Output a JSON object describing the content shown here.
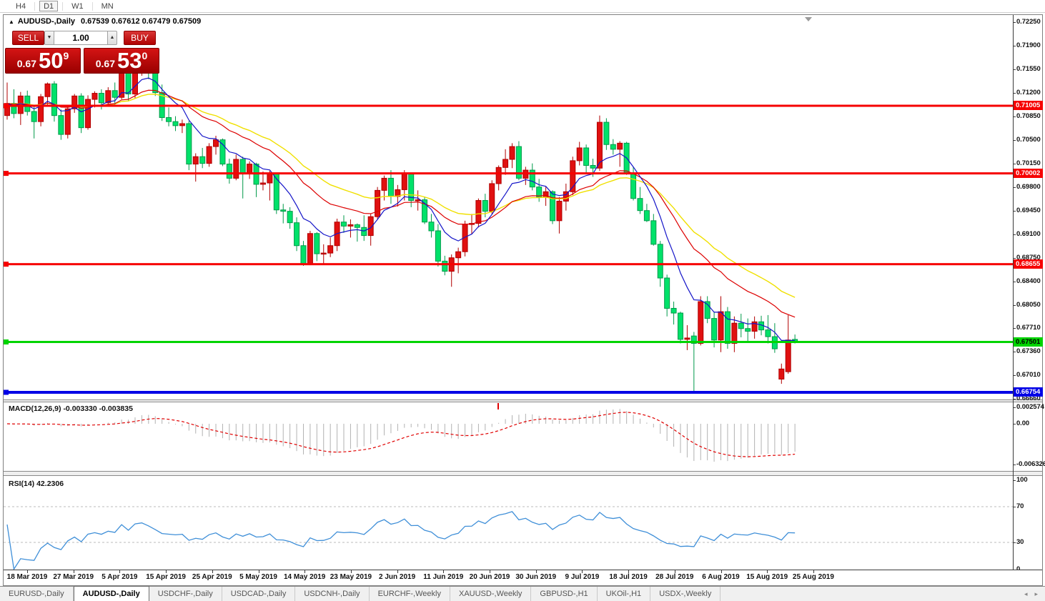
{
  "toolbar": {
    "timeframes": [
      {
        "label": "H4",
        "active": false
      },
      {
        "label": "D1",
        "active": true
      },
      {
        "label": "W1",
        "active": false
      },
      {
        "label": "MN",
        "active": false
      }
    ]
  },
  "header": {
    "symbol_title": "AUDUSD-,Daily",
    "ohlc_text": "0.67539 0.67612 0.67479 0.67509"
  },
  "trade_panel": {
    "sell_label": "SELL",
    "buy_label": "BUY",
    "volume": "1.00",
    "spin_down": "▼",
    "spin_up": "▲",
    "sell_price": {
      "prefix": "0.67",
      "big": "50",
      "sup": "9"
    },
    "buy_price": {
      "prefix": "0.67",
      "big": "53",
      "sup": "0"
    }
  },
  "price_axis": {
    "labels": [
      "0.72250",
      "0.71900",
      "0.71550",
      "0.71200",
      "0.70850",
      "0.70500",
      "0.70150",
      "0.69800",
      "0.69450",
      "0.69100",
      "0.68750",
      "0.68400",
      "0.68050",
      "0.67710",
      "0.67360",
      "0.67010",
      "0.66660"
    ]
  },
  "hlines": [
    {
      "price": 0.71005,
      "label": "0.71005",
      "line_color": "#f60000",
      "text_color": "#ffffff",
      "thickness": 3
    },
    {
      "price": 0.70002,
      "label": "0.70002",
      "line_color": "#f60000",
      "text_color": "#ffffff",
      "thickness": 3
    },
    {
      "price": 0.68655,
      "label": "0.68655",
      "line_color": "#f60000",
      "text_color": "#ffffff",
      "thickness": 3
    },
    {
      "price": 0.67501,
      "label": "0.67501",
      "line_color": "#00d400",
      "text_color": "#000000",
      "thickness": 3
    },
    {
      "price": 0.66754,
      "label": "0.66754",
      "line_color": "#0000e6",
      "text_color": "#ffffff",
      "thickness": 4
    }
  ],
  "macd_panel": {
    "label": "MACD(12,26,9) -0.003330 -0.003835",
    "axis_labels": [
      "0.002574",
      "0.00",
      "-0.006326"
    ],
    "histogram_color": "#b2b2b2",
    "signal_color": "#e00000"
  },
  "rsi_panel": {
    "label": "RSI(14) 42.2306",
    "axis_labels": [
      "100",
      "70",
      "30",
      "0"
    ],
    "levels": [
      70,
      30
    ],
    "level_color": "#bbbbbb",
    "line_color": "#3f8fd8"
  },
  "date_axis": {
    "labels": [
      "18 Mar 2019",
      "27 Mar 2019",
      "5 Apr 2019",
      "15 Apr 2019",
      "25 Apr 2019",
      "5 May 2019",
      "14 May 2019",
      "23 May 2019",
      "2 Jun 2019",
      "11 Jun 2019",
      "20 Jun 2019",
      "30 Jun 2019",
      "9 Jul 2019",
      "18 Jul 2019",
      "28 Jul 2019",
      "6 Aug 2019",
      "15 Aug 2019",
      "25 Aug 2019"
    ]
  },
  "tabs": {
    "items": [
      {
        "label": "EURUSD-,Daily",
        "active": false
      },
      {
        "label": "AUDUSD-,Daily",
        "active": true
      },
      {
        "label": "USDCHF-,Daily",
        "active": false
      },
      {
        "label": "USDCAD-,Daily",
        "active": false
      },
      {
        "label": "USDCNH-,Daily",
        "active": false
      },
      {
        "label": "EURCHF-,Weekly",
        "active": false
      },
      {
        "label": "XAUUSD-,Weekly",
        "active": false
      },
      {
        "label": "GBPUSD-,H1",
        "active": false
      },
      {
        "label": "UKOil-,H1",
        "active": false
      },
      {
        "label": "USDX-,Weekly",
        "active": false
      }
    ],
    "scroll_left": "◂",
    "scroll_right": "▸"
  },
  "colors": {
    "candle_up_fill": "#e01010",
    "candle_up_stroke": "#b00000",
    "candle_down_fill": "#00e26a",
    "candle_down_stroke": "#009a4a",
    "ma_fast": "#1414c8",
    "ma_mid": "#dd0000",
    "ma_slow": "#f0e000"
  },
  "chart_data": {
    "type": "candlestick",
    "symbol": "AUDUSD",
    "timeframe": "Daily",
    "current_bar": {
      "open": 0.67539,
      "high": 0.67612,
      "low": 0.67479,
      "close": 0.67509
    },
    "bid": 0.67509,
    "ask": 0.6753,
    "y_range": [
      0.6666,
      0.7225
    ],
    "hline_values": [
      0.71005,
      0.70002,
      0.68655,
      0.67501,
      0.66754
    ],
    "macd": {
      "fast": 12,
      "slow": 26,
      "signal": 9,
      "value": -0.00333,
      "signal_value": -0.003835,
      "axis_max": 0.002574,
      "axis_min": -0.006326
    },
    "rsi": {
      "period": 14,
      "value": 42.2306,
      "levels": [
        70,
        30
      ]
    },
    "candles": [
      [
        0.7086,
        0.7135,
        0.708,
        0.7104
      ],
      [
        0.7104,
        0.7125,
        0.7082,
        0.7089
      ],
      [
        0.7089,
        0.7121,
        0.7072,
        0.7115
      ],
      [
        0.7115,
        0.7123,
        0.7086,
        0.7092
      ],
      [
        0.7092,
        0.71,
        0.7052,
        0.7077
      ],
      [
        0.7077,
        0.7118,
        0.707,
        0.7114
      ],
      [
        0.7114,
        0.7135,
        0.71,
        0.7133
      ],
      [
        0.7133,
        0.7137,
        0.7077,
        0.7086
      ],
      [
        0.7086,
        0.7095,
        0.705,
        0.7058
      ],
      [
        0.7058,
        0.7098,
        0.7052,
        0.7096
      ],
      [
        0.7096,
        0.7118,
        0.709,
        0.7115
      ],
      [
        0.7115,
        0.7119,
        0.706,
        0.7068
      ],
      [
        0.7068,
        0.7116,
        0.7065,
        0.711
      ],
      [
        0.711,
        0.7122,
        0.7098,
        0.7119
      ],
      [
        0.7119,
        0.7125,
        0.7095,
        0.7105
      ],
      [
        0.7105,
        0.7128,
        0.71,
        0.7123
      ],
      [
        0.7123,
        0.7135,
        0.7102,
        0.7113
      ],
      [
        0.7113,
        0.7168,
        0.711,
        0.7162
      ],
      [
        0.7162,
        0.7165,
        0.7108,
        0.7118
      ],
      [
        0.7118,
        0.7168,
        0.7112,
        0.7165
      ],
      [
        0.7165,
        0.7175,
        0.7145,
        0.7173
      ],
      [
        0.7173,
        0.7178,
        0.714,
        0.715
      ],
      [
        0.715,
        0.716,
        0.7115,
        0.712
      ],
      [
        0.712,
        0.7132,
        0.7078,
        0.7083
      ],
      [
        0.7083,
        0.7098,
        0.707,
        0.7077
      ],
      [
        0.7077,
        0.7085,
        0.7063,
        0.7071
      ],
      [
        0.7071,
        0.708,
        0.706,
        0.7074
      ],
      [
        0.7074,
        0.7078,
        0.7005,
        0.7014
      ],
      [
        0.7014,
        0.703,
        0.6988,
        0.7025
      ],
      [
        0.7025,
        0.7038,
        0.7008,
        0.7015
      ],
      [
        0.7015,
        0.7045,
        0.701,
        0.704
      ],
      [
        0.704,
        0.7056,
        0.7028,
        0.705
      ],
      [
        0.705,
        0.7052,
        0.7011,
        0.7014
      ],
      [
        0.7014,
        0.7022,
        0.6985,
        0.6993
      ],
      [
        0.6993,
        0.7028,
        0.699,
        0.7021
      ],
      [
        0.7021,
        0.7025,
        0.6963,
        0.7
      ],
      [
        0.7,
        0.7018,
        0.6992,
        0.7014
      ],
      [
        0.7014,
        0.7016,
        0.6965,
        0.6984
      ],
      [
        0.6984,
        0.7003,
        0.6975,
        0.6986
      ],
      [
        0.6986,
        0.7004,
        0.696,
        0.7
      ],
      [
        0.7,
        0.7,
        0.694,
        0.6946
      ],
      [
        0.6946,
        0.6955,
        0.6926,
        0.6944
      ],
      [
        0.6944,
        0.695,
        0.6918,
        0.6927
      ],
      [
        0.6927,
        0.6935,
        0.6885,
        0.6893
      ],
      [
        0.6893,
        0.69,
        0.6863,
        0.6866
      ],
      [
        0.6866,
        0.6915,
        0.6864,
        0.6911
      ],
      [
        0.6911,
        0.6913,
        0.687,
        0.6881
      ],
      [
        0.6881,
        0.6895,
        0.6865,
        0.6882
      ],
      [
        0.6882,
        0.6905,
        0.6876,
        0.6893
      ],
      [
        0.6893,
        0.6933,
        0.6885,
        0.6928
      ],
      [
        0.6928,
        0.6938,
        0.6912,
        0.6922
      ],
      [
        0.6922,
        0.6932,
        0.6905,
        0.6924
      ],
      [
        0.6924,
        0.6926,
        0.6899,
        0.692
      ],
      [
        0.692,
        0.6938,
        0.69,
        0.6908
      ],
      [
        0.6908,
        0.694,
        0.6893,
        0.6936
      ],
      [
        0.6936,
        0.698,
        0.6932,
        0.6975
      ],
      [
        0.6975,
        0.6997,
        0.696,
        0.6993
      ],
      [
        0.6993,
        0.7005,
        0.6955,
        0.6966
      ],
      [
        0.6966,
        0.6983,
        0.6951,
        0.6976
      ],
      [
        0.6976,
        0.7005,
        0.696,
        0.7
      ],
      [
        0.7,
        0.7,
        0.695,
        0.696
      ],
      [
        0.696,
        0.6975,
        0.6945,
        0.6961
      ],
      [
        0.6961,
        0.6965,
        0.6925,
        0.6928
      ],
      [
        0.6928,
        0.694,
        0.6905,
        0.6915
      ],
      [
        0.6915,
        0.6925,
        0.6862,
        0.687
      ],
      [
        0.687,
        0.6878,
        0.6849,
        0.6855
      ],
      [
        0.6855,
        0.688,
        0.6832,
        0.6875
      ],
      [
        0.6875,
        0.689,
        0.6852,
        0.6884
      ],
      [
        0.6884,
        0.693,
        0.6877,
        0.6925
      ],
      [
        0.6925,
        0.694,
        0.691,
        0.6926
      ],
      [
        0.6926,
        0.6963,
        0.692,
        0.696
      ],
      [
        0.696,
        0.697,
        0.6935,
        0.6944
      ],
      [
        0.6944,
        0.699,
        0.694,
        0.6985
      ],
      [
        0.6985,
        0.7012,
        0.6975,
        0.7009
      ],
      [
        0.7009,
        0.7036,
        0.6998,
        0.7021
      ],
      [
        0.7021,
        0.7045,
        0.7008,
        0.704
      ],
      [
        0.704,
        0.7048,
        0.699,
        0.6993
      ],
      [
        0.6993,
        0.701,
        0.6983,
        0.7005
      ],
      [
        0.7005,
        0.7015,
        0.6975,
        0.698
      ],
      [
        0.698,
        0.6992,
        0.6958,
        0.6965
      ],
      [
        0.6965,
        0.698,
        0.6952,
        0.6973
      ],
      [
        0.6973,
        0.6975,
        0.6925,
        0.693
      ],
      [
        0.693,
        0.6965,
        0.6911,
        0.6959
      ],
      [
        0.6959,
        0.6985,
        0.6945,
        0.6973
      ],
      [
        0.6973,
        0.7025,
        0.6968,
        0.7019
      ],
      [
        0.7019,
        0.7047,
        0.7012,
        0.7038
      ],
      [
        0.7038,
        0.7043,
        0.7,
        0.7012
      ],
      [
        0.7012,
        0.7022,
        0.6995,
        0.7008
      ],
      [
        0.7008,
        0.7086,
        0.7004,
        0.7076
      ],
      [
        0.7076,
        0.7082,
        0.7035,
        0.7043
      ],
      [
        0.7043,
        0.7051,
        0.7028,
        0.7036
      ],
      [
        0.7036,
        0.7048,
        0.701,
        0.7045
      ],
      [
        0.7045,
        0.7047,
        0.6998,
        0.7
      ],
      [
        0.7,
        0.701,
        0.696,
        0.6963
      ],
      [
        0.6963,
        0.698,
        0.694,
        0.6945
      ],
      [
        0.6945,
        0.6955,
        0.6928,
        0.693
      ],
      [
        0.693,
        0.694,
        0.6893,
        0.6895
      ],
      [
        0.6895,
        0.69,
        0.6832,
        0.6845
      ],
      [
        0.6845,
        0.685,
        0.6788,
        0.68
      ],
      [
        0.68,
        0.681,
        0.6776,
        0.6793
      ],
      [
        0.6793,
        0.6795,
        0.6748,
        0.6754
      ],
      [
        0.6754,
        0.6775,
        0.6738,
        0.6756
      ],
      [
        0.6759,
        0.6765,
        0.6676,
        0.6748
      ],
      [
        0.6748,
        0.6818,
        0.6745,
        0.681
      ],
      [
        0.681,
        0.6818,
        0.6778,
        0.6785
      ],
      [
        0.6785,
        0.6795,
        0.6742,
        0.6753
      ],
      [
        0.6753,
        0.6818,
        0.6735,
        0.6795
      ],
      [
        0.6795,
        0.6802,
        0.674,
        0.6748
      ],
      [
        0.6748,
        0.6788,
        0.6735,
        0.6778
      ],
      [
        0.6778,
        0.6792,
        0.6757,
        0.677
      ],
      [
        0.677,
        0.6785,
        0.675,
        0.6766
      ],
      [
        0.6766,
        0.6788,
        0.6755,
        0.678
      ],
      [
        0.678,
        0.6789,
        0.676,
        0.6768
      ],
      [
        0.6768,
        0.679,
        0.6748,
        0.6758
      ],
      [
        0.6758,
        0.6778,
        0.6734,
        0.674
      ],
      [
        0.6695,
        0.6718,
        0.6688,
        0.671
      ],
      [
        0.6706,
        0.679,
        0.6703,
        0.6753
      ],
      [
        0.67539,
        0.67612,
        0.67479,
        0.67509
      ]
    ]
  }
}
